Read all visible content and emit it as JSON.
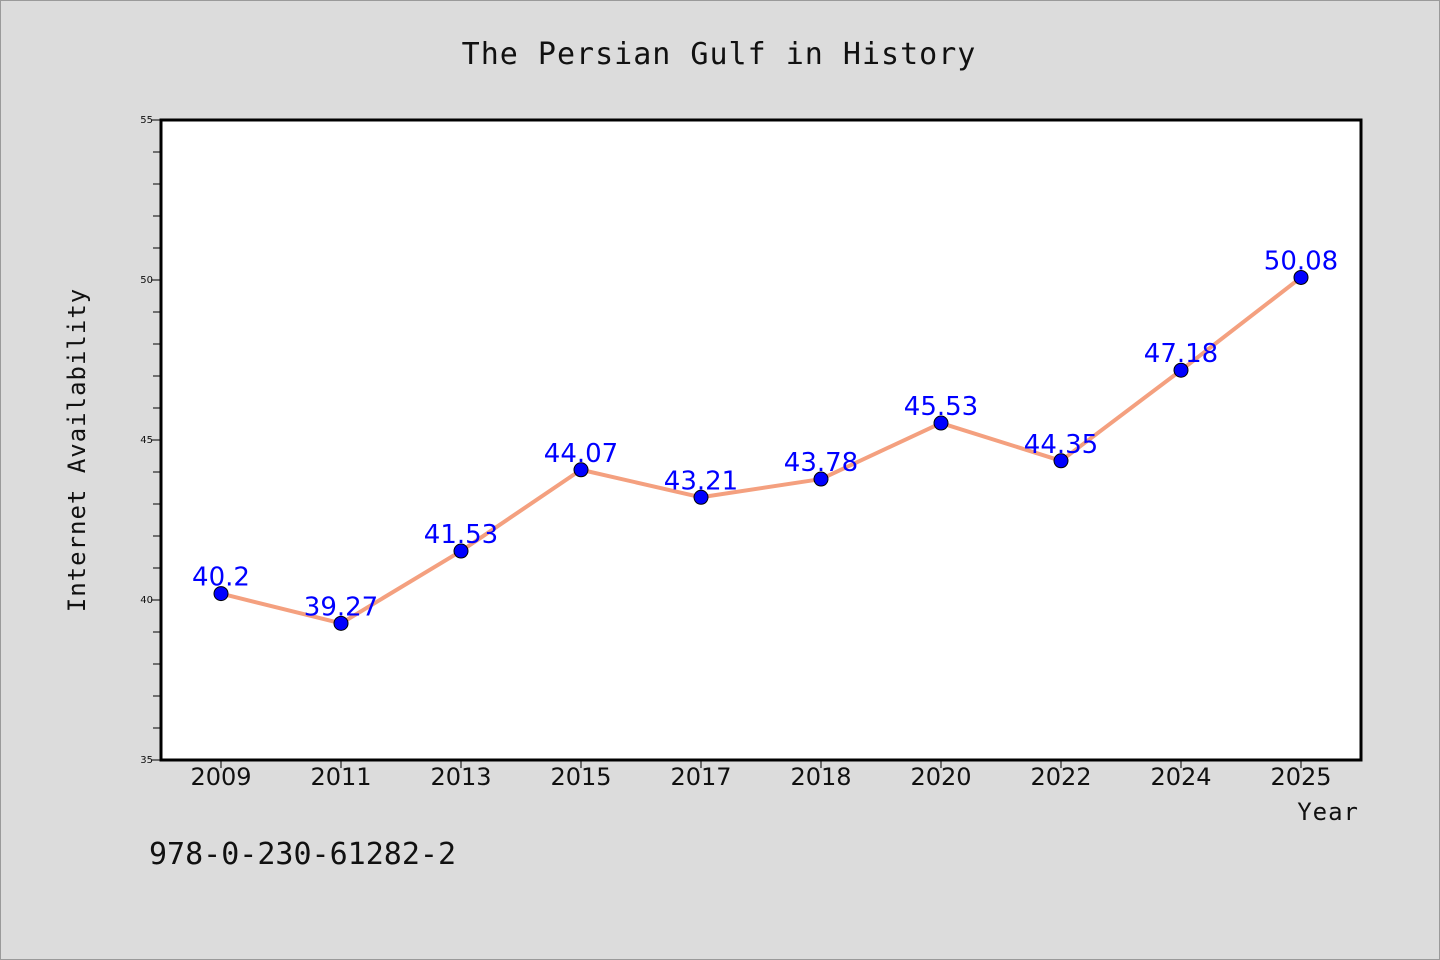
{
  "chart_data": {
    "type": "line",
    "title": "The Persian Gulf in History",
    "xlabel": "Year",
    "ylabel": "Internet Availability",
    "categories": [
      "2009",
      "2011",
      "2013",
      "2015",
      "2017",
      "2018",
      "2020",
      "2022",
      "2024",
      "2025"
    ],
    "series": [
      {
        "values": [
          40.2,
          39.27,
          41.53,
          44.07,
          43.21,
          43.78,
          45.53,
          44.35,
          47.18,
          50.08
        ],
        "data_labels": [
          "40.2",
          "39.27",
          "41.53",
          "44.07",
          "43.21",
          "43.78",
          "45.53",
          "44.35",
          "47.18",
          "50.08"
        ],
        "line_color": "#f4a07f",
        "marker_color": "#0000ff"
      }
    ],
    "ylim": [
      35,
      55
    ],
    "yticks": [
      35,
      40,
      45,
      50,
      55
    ],
    "ytick_labels": [
      "35",
      "40",
      "45",
      "50",
      "55"
    ],
    "grid": false,
    "legend": "none",
    "plot_background": "#ffffff",
    "figure_background": "#dcdcdc"
  },
  "footer": {
    "isbn": "978-0-230-61282-2"
  }
}
